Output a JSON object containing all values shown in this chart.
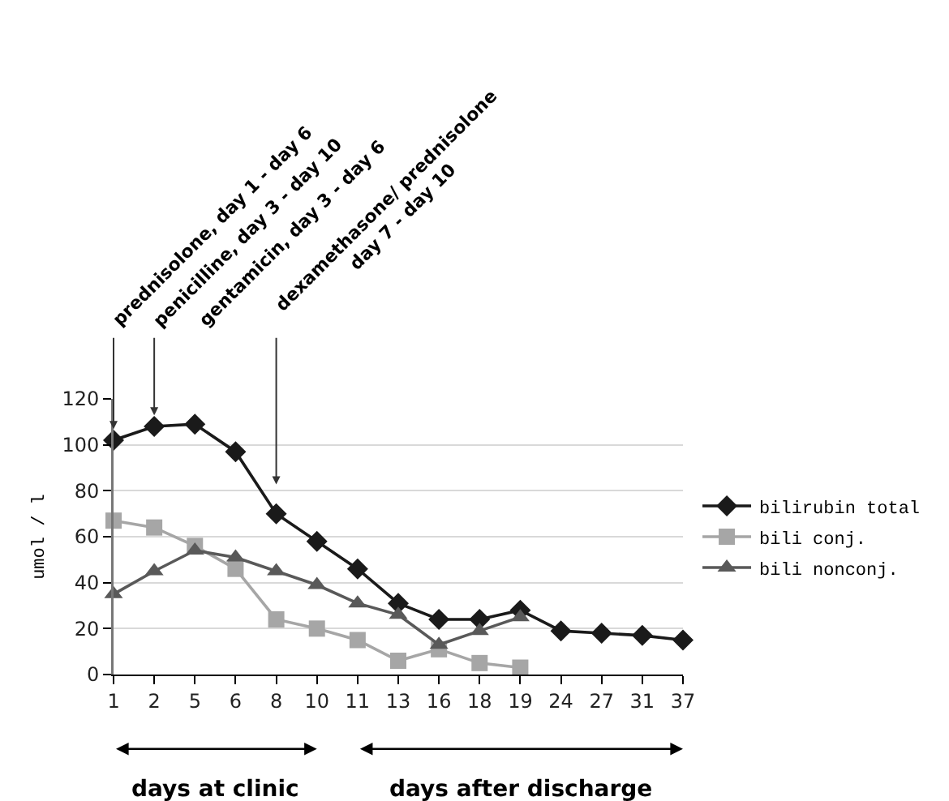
{
  "chart_data": {
    "type": "line",
    "ylabel": "umol / l",
    "categories": [
      "1",
      "2",
      "5",
      "6",
      "8",
      "10",
      "11",
      "13",
      "16",
      "18",
      "19",
      "24",
      "27",
      "31",
      "37"
    ],
    "series": [
      {
        "name": "bilirubin total",
        "color": "#1a1a1a",
        "marker": "diamond",
        "values": [
          102,
          108,
          109,
          97,
          70,
          58,
          46,
          31,
          24,
          24,
          28,
          19,
          18,
          17,
          15
        ]
      },
      {
        "name": "bili conj.",
        "color": "#a6a6a6",
        "marker": "square",
        "values": [
          67,
          64,
          56,
          46,
          24,
          20,
          15,
          6,
          11,
          5,
          3,
          null,
          null,
          null,
          null
        ]
      },
      {
        "name": "bili nonconj.",
        "color": "#595959",
        "marker": "triangle",
        "values": [
          35,
          45,
          54,
          51,
          45,
          39,
          31,
          26,
          13,
          19,
          25,
          null,
          null,
          null,
          null
        ]
      }
    ],
    "ylim": [
      0,
      120
    ],
    "yticks": [
      0,
      20,
      40,
      60,
      80,
      100,
      120
    ],
    "grid": "y",
    "legend": "right",
    "annotations": [
      {
        "text": "prednisolone, day 1 - day 6",
        "x": "1",
        "y": 104
      },
      {
        "text": "penicilline, day 3 - day 10",
        "x": "2",
        "y": 110
      },
      "gentamicin, day 3 - day 6",
      "dexamethasone/ prednisolone\nday 7 - day 10",
      "days at clinic",
      "days after discharge"
    ]
  }
}
